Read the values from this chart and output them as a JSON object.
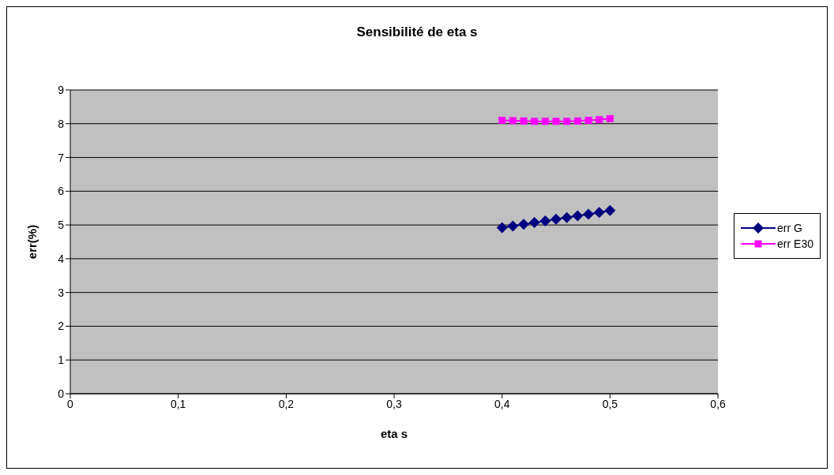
{
  "chart_data": {
    "type": "line",
    "title": "Sensibilité de eta s",
    "xlabel": "eta s",
    "ylabel": "err(%)",
    "x": [
      0.4,
      0.41,
      0.42,
      0.43,
      0.44,
      0.45,
      0.46,
      0.47,
      0.48,
      0.49,
      0.5
    ],
    "series": [
      {
        "name": "err G",
        "color": "#000080",
        "marker": "diamond",
        "values": [
          4.92,
          4.97,
          5.02,
          5.07,
          5.12,
          5.17,
          5.22,
          5.27,
          5.32,
          5.37,
          5.43
        ]
      },
      {
        "name": "err E30",
        "color": "#ff00ff",
        "marker": "square",
        "values": [
          8.1,
          8.09,
          8.08,
          8.07,
          8.07,
          8.07,
          8.07,
          8.08,
          8.1,
          8.12,
          8.15
        ]
      }
    ],
    "xlim": [
      0,
      0.6
    ],
    "xticks": [
      0,
      {
        "value": 0.1,
        "label": "0,1"
      },
      {
        "value": 0.2,
        "label": "0,2"
      },
      {
        "value": 0.3,
        "label": "0,3"
      },
      {
        "value": 0.4,
        "label": "0,4"
      },
      {
        "value": 0.5,
        "label": "0,5"
      },
      {
        "value": 0.6,
        "label": "0,6"
      }
    ],
    "ylim": [
      0,
      9
    ],
    "yticks": [
      0,
      1,
      2,
      3,
      4,
      5,
      6,
      7,
      8,
      9
    ],
    "grid": "y",
    "legend": "right"
  }
}
